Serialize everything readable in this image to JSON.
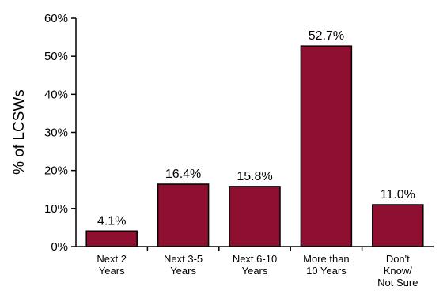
{
  "chart_data": {
    "type": "bar",
    "title": "",
    "xlabel": "",
    "ylabel": "% of LCSWs",
    "ylim": [
      0,
      60
    ],
    "yticks": [
      0,
      10,
      20,
      30,
      40,
      50,
      60
    ],
    "ytick_labels": [
      "0%",
      "10%",
      "20%",
      "30%",
      "40%",
      "50%",
      "60%"
    ],
    "grid": false,
    "legend": "none",
    "categories": [
      [
        "Next 2",
        "Years"
      ],
      [
        "Next 3-5",
        "Years"
      ],
      [
        "Next 6-10",
        "Years"
      ],
      [
        "More than",
        "10 Years"
      ],
      [
        "Don't",
        "Know/",
        "Not Sure"
      ]
    ],
    "values": [
      4.1,
      16.4,
      15.8,
      52.7,
      11.0
    ],
    "data_labels": [
      "4.1%",
      "16.4%",
      "15.8%",
      "52.7%",
      "11.0%"
    ],
    "bar_color": "#8e0f2f",
    "bar_edge_color": "#000000"
  }
}
